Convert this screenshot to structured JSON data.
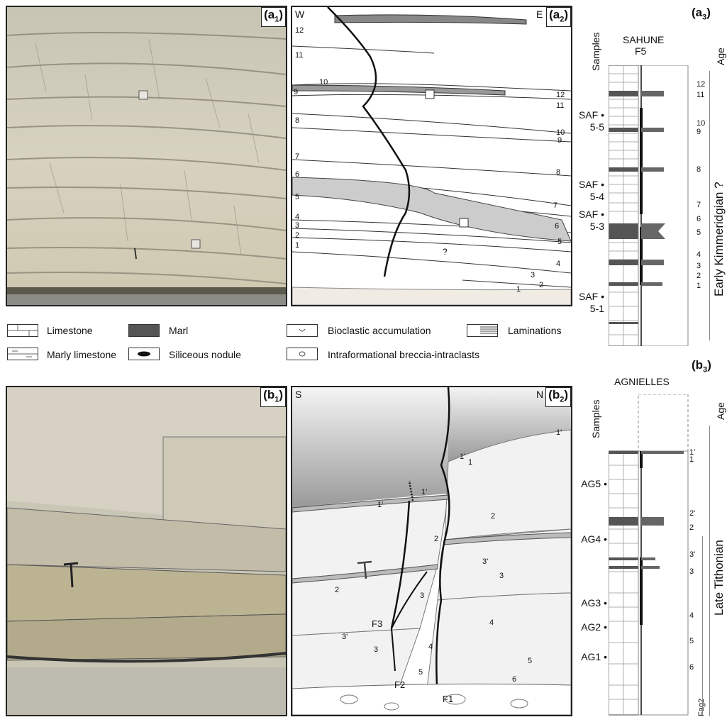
{
  "panels": {
    "a1": {
      "letter": "a",
      "sub": "1"
    },
    "a2": {
      "letter": "a",
      "sub": "2"
    },
    "a3": {
      "letter": "a",
      "sub": "3"
    },
    "b1": {
      "letter": "b",
      "sub": "1"
    },
    "b2": {
      "letter": "b",
      "sub": "2"
    },
    "b3": {
      "letter": "b",
      "sub": "3"
    }
  },
  "sketch_a2": {
    "west": "W",
    "east": "E",
    "bed_labels": [
      "12",
      "11",
      "10",
      "9",
      "8",
      "7",
      "6",
      "5",
      "4",
      "3",
      "2",
      "1"
    ],
    "right_labels": [
      "12",
      "11",
      "10",
      "9",
      "8",
      "7",
      "6",
      "5",
      "4",
      "3",
      "2",
      "1"
    ],
    "question": "?"
  },
  "sketch_b2": {
    "south": "S",
    "north": "N",
    "labels": [
      "1'",
      "1'",
      "1'",
      "1'",
      "1",
      "2",
      "2",
      "2",
      "3'",
      "3'",
      "3",
      "3",
      "3",
      "4",
      "4",
      "5",
      "5",
      "6"
    ],
    "faults": [
      "F1",
      "F2",
      "F3"
    ]
  },
  "log_a3": {
    "section": "SAHUNE",
    "section_sub": "F5",
    "samples_header": "Samples",
    "age_header": "Age",
    "age": "Early Kimmeridgian ?",
    "samples": [
      {
        "line1": "SAF",
        "line2": "5-5"
      },
      {
        "line1": "SAF",
        "line2": "5-4"
      },
      {
        "line1": "SAF",
        "line2": "5-3"
      },
      {
        "line1": "SAF",
        "line2": "5-1"
      }
    ],
    "beds": [
      "12",
      "11",
      "10",
      "9",
      "8",
      "7",
      "6",
      "5",
      "4",
      "3",
      "2",
      "1"
    ]
  },
  "log_b3": {
    "section": "AGNIELLES",
    "samples_header": "Samples",
    "age_header": "Age",
    "age": "Late Tithonian",
    "unit": "Fag2",
    "samples": [
      "AG5",
      "AG4",
      "AG3",
      "AG2",
      "AG1"
    ],
    "beds": [
      "1'",
      "1",
      "2'",
      "2",
      "3'",
      "3",
      "4",
      "5",
      "6"
    ]
  },
  "legend": {
    "limestone": "Limestone",
    "marly_limestone": "Marly limestone",
    "marl": "Marl",
    "siliceous_nodule": "Siliceous nodule",
    "bioclastic": "Bioclastic accumulation",
    "breccia": "Intraformational breccia-intraclasts",
    "laminations": "Laminations"
  }
}
